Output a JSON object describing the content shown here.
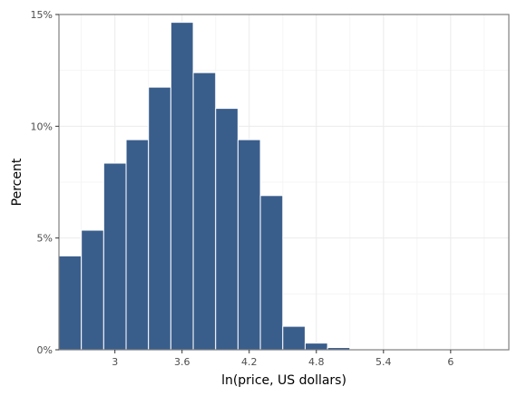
{
  "chart_data": {
    "type": "bar",
    "xlabel": "ln(price, US dollars)",
    "ylabel": "Percent",
    "bin_width": 0.2,
    "bins": [
      {
        "start": 2.5,
        "value": 4.2
      },
      {
        "start": 2.7,
        "value": 5.35
      },
      {
        "start": 2.9,
        "value": 8.35
      },
      {
        "start": 3.1,
        "value": 9.4
      },
      {
        "start": 3.3,
        "value": 11.75
      },
      {
        "start": 3.5,
        "value": 14.65
      },
      {
        "start": 3.7,
        "value": 12.4
      },
      {
        "start": 3.9,
        "value": 10.8
      },
      {
        "start": 4.1,
        "value": 9.4
      },
      {
        "start": 4.3,
        "value": 6.9
      },
      {
        "start": 4.5,
        "value": 1.05
      },
      {
        "start": 4.7,
        "value": 0.3
      },
      {
        "start": 4.9,
        "value": 0.1
      },
      {
        "start": 5.1,
        "value": 0.02
      },
      {
        "start": 5.3,
        "value": 0.02
      },
      {
        "start": 5.5,
        "value": 0.02
      },
      {
        "start": 5.7,
        "value": 0.02
      },
      {
        "start": 5.9,
        "value": 0.01
      },
      {
        "start": 6.1,
        "value": 0.01
      },
      {
        "start": 6.3,
        "value": 0.01
      }
    ],
    "xlim": [
      2.5,
      6.52
    ],
    "ylim": [
      0,
      15
    ],
    "x_ticks": [
      {
        "value": 3.0,
        "label": "3"
      },
      {
        "value": 3.6,
        "label": "3.6"
      },
      {
        "value": 4.2,
        "label": "4.2"
      },
      {
        "value": 4.8,
        "label": "4.8"
      },
      {
        "value": 5.4,
        "label": "5.4"
      },
      {
        "value": 6.0,
        "label": "6"
      }
    ],
    "y_ticks": [
      {
        "value": 0,
        "label": "0%"
      },
      {
        "value": 5,
        "label": "5%"
      },
      {
        "value": 10,
        "label": "10%"
      },
      {
        "value": 15,
        "label": "15%"
      }
    ],
    "grid": true,
    "bar_color": "#3a5e8c",
    "bar_edge_color": "#ffffff"
  }
}
